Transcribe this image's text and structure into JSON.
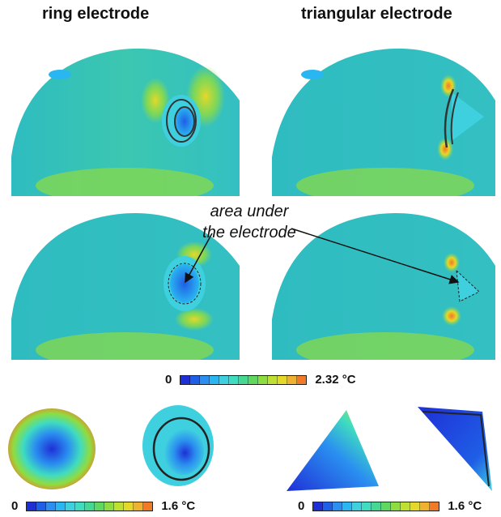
{
  "titles": {
    "left": "ring electrode",
    "right": "triangular electrode"
  },
  "annotation": {
    "line1": "area under",
    "line2": "the electrode"
  },
  "colorbars": [
    {
      "min": "0",
      "max": "2.32 °C"
    },
    {
      "min": "0",
      "max": "1.6 °C"
    },
    {
      "min": "0",
      "max": "1.6 °C"
    }
  ],
  "colormap": [
    "#1f2fd6",
    "#1f5ee6",
    "#2a8ff0",
    "#2ab6f0",
    "#3fd0e0",
    "#3fdcc0",
    "#45d890",
    "#60d860",
    "#8fdc40",
    "#bfe030",
    "#e6d828",
    "#f0b030",
    "#f07a28"
  ]
}
